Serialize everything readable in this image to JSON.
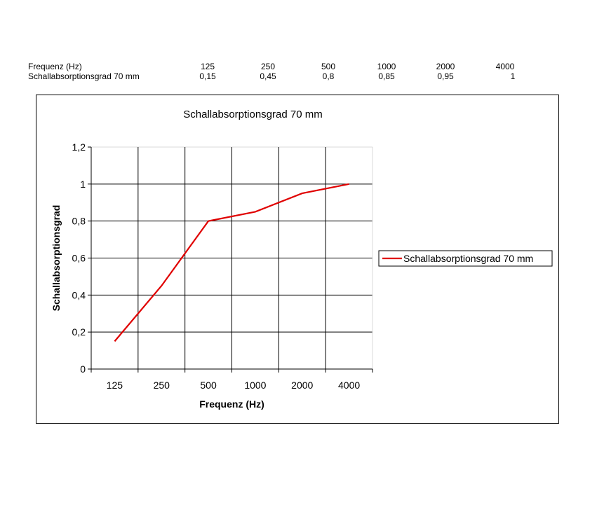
{
  "table": {
    "row1_label": "Frequenz (Hz)",
    "row2_label": "Schallabsorptionsgrad 70 mm",
    "row1_values": [
      "125",
      "250",
      "500",
      "1000",
      "2000",
      "4000"
    ],
    "row2_values": [
      "0,15",
      "0,45",
      "0,8",
      "0,85",
      "0,95",
      "1"
    ]
  },
  "chart_data": {
    "type": "line",
    "title": "Schallabsorptionsgrad 70 mm",
    "xlabel": "Frequenz (Hz)",
    "ylabel": "Schallabsorptionsgrad",
    "categories": [
      "125",
      "250",
      "500",
      "1000",
      "2000",
      "4000"
    ],
    "series": [
      {
        "name": "Schallabsorptionsgrad 70 mm",
        "values": [
          0.15,
          0.45,
          0.8,
          0.85,
          0.95,
          1.0
        ],
        "color": "#e00000"
      }
    ],
    "ylim": [
      0,
      1.2
    ],
    "yticks": [
      0,
      0.2,
      0.4,
      0.6,
      0.8,
      1,
      1.2
    ],
    "ytick_labels": [
      "0",
      "0,2",
      "0,4",
      "0,6",
      "0,8",
      "1",
      "1,2"
    ],
    "grid": true,
    "legend_position": "right"
  }
}
